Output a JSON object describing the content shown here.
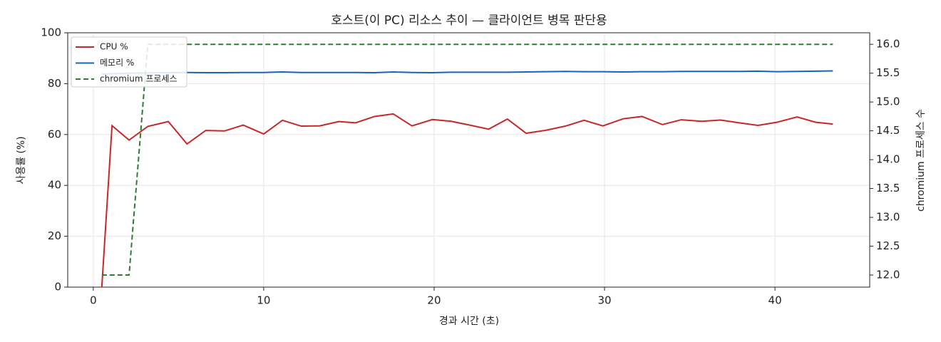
{
  "chart_data": {
    "type": "line",
    "title": "호스트(이 PC) 리소스 추이 — 클라이언트 병목 판단용",
    "xlabel": "경과 시간 (초)",
    "ylabel": "사용률 (%)",
    "y2label": "chromium 프로세스 수",
    "x": [
      0.5,
      1.1,
      2.1,
      3.2,
      4.4,
      5.5,
      6.6,
      7.7,
      8.8,
      10.0,
      11.1,
      12.2,
      13.3,
      14.4,
      15.4,
      16.5,
      17.6,
      18.7,
      19.9,
      21.0,
      22.1,
      23.2,
      24.3,
      25.4,
      26.5,
      27.7,
      28.8,
      29.9,
      31.1,
      32.2,
      33.4,
      34.5,
      35.7,
      36.8,
      37.9,
      39.0,
      40.1,
      41.3,
      42.4,
      43.4
    ],
    "series": [
      {
        "name": "CPU %",
        "color": "#c62828",
        "linestyle": "solid",
        "values": [
          0,
          63.5,
          57.8,
          63.2,
          65.1,
          56.3,
          61.6,
          61.4,
          63.7,
          60.2,
          65.6,
          63.3,
          63.4,
          65.1,
          64.6,
          67.1,
          68.1,
          63.4,
          65.9,
          65.2,
          63.7,
          62.1,
          66.1,
          60.5,
          61.6,
          63.3,
          65.6,
          63.4,
          66.2,
          67.1,
          63.9,
          65.8,
          65.2,
          65.7,
          64.6,
          63.6,
          64.8,
          66.9,
          64.8,
          64.1
        ]
      },
      {
        "name": "메모리 %",
        "color": "#1565c0",
        "linestyle": "solid",
        "values": [
          83.8,
          83.9,
          84.1,
          84.2,
          84.3,
          84.4,
          84.3,
          84.3,
          84.4,
          84.4,
          84.6,
          84.4,
          84.4,
          84.4,
          84.4,
          84.3,
          84.6,
          84.4,
          84.3,
          84.5,
          84.5,
          84.5,
          84.5,
          84.6,
          84.7,
          84.8,
          84.7,
          84.7,
          84.6,
          84.7,
          84.7,
          84.8,
          84.8,
          84.8,
          84.8,
          84.9,
          84.7,
          84.8,
          84.9,
          85.0
        ]
      },
      {
        "name": "chromium 프로세스",
        "color": "#2e7d32",
        "linestyle": "dashed",
        "axis": "y2",
        "values": [
          12,
          12,
          12,
          16,
          16,
          16,
          16,
          16,
          16,
          16,
          16,
          16,
          16,
          16,
          16,
          16,
          16,
          16,
          16,
          16,
          16,
          16,
          16,
          16,
          16,
          16,
          16,
          16,
          16,
          16,
          16,
          16,
          16,
          16,
          16,
          16,
          16,
          16,
          16,
          16
        ]
      }
    ],
    "xlim": [
      -1.5,
      45.56
    ],
    "xticks": [
      0,
      10,
      20,
      30,
      40
    ],
    "ylim": [
      0,
      100
    ],
    "yticks": [
      0,
      20,
      40,
      60,
      80,
      100
    ],
    "y2lim": [
      11.79,
      16.2
    ],
    "y2ticks": [
      {
        "value": 12,
        "label": "12.0"
      },
      12.5,
      {
        "value": 13,
        "label": "13.0"
      },
      13.5,
      {
        "value": 14,
        "label": "14.0"
      },
      14.5,
      {
        "value": 15,
        "label": "15.0"
      },
      15.5,
      {
        "value": 16,
        "label": "16.0"
      }
    ],
    "grid": true,
    "legend": "upper-left"
  }
}
